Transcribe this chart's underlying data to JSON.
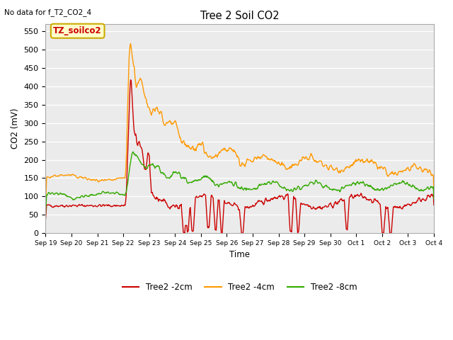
{
  "title": "Tree 2 Soil CO2",
  "top_left_note": "No data for f_T2_CO2_4",
  "ylabel": "CO2 (mV)",
  "xlabel": "Time",
  "ylim": [
    0,
    570
  ],
  "yticks": [
    0,
    50,
    100,
    150,
    200,
    250,
    300,
    350,
    400,
    450,
    500,
    550
  ],
  "xtick_labels": [
    "Sep 19",
    "Sep 20",
    "Sep 21",
    "Sep 22",
    "Sep 23",
    "Sep 24",
    "Sep 25",
    "Sep 26",
    "Sep 27",
    "Sep 28",
    "Sep 29",
    "Sep 30",
    "Oct 1",
    "Oct 2",
    "Oct 3",
    "Oct 4"
  ],
  "legend_labels": [
    "Tree2 -2cm",
    "Tree2 -4cm",
    "Tree2 -8cm"
  ],
  "colors": [
    "#cc0000",
    "#ff9900",
    "#33aa00"
  ],
  "inset_label": "TZ_soilco2",
  "inset_bg": "#ffffcc",
  "inset_border": "#ccaa00",
  "plot_bg": "#ebebeb"
}
